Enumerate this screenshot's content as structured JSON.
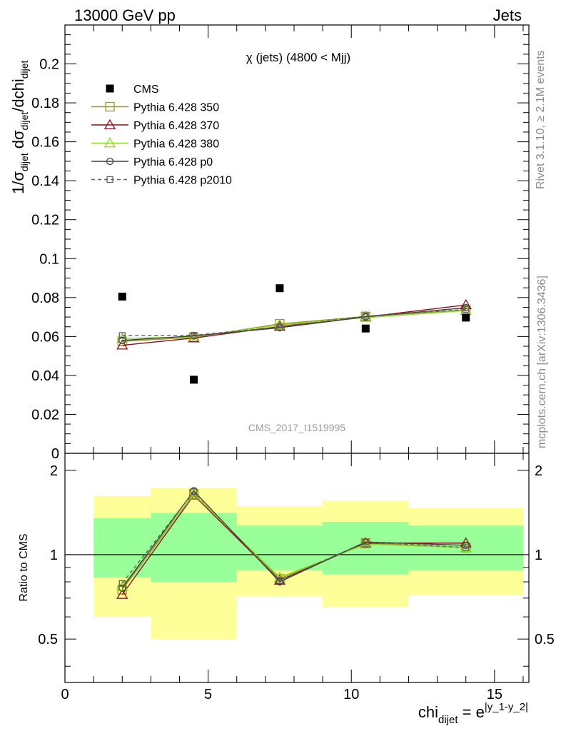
{
  "header": {
    "left": "13000 GeV pp",
    "right": "Jets"
  },
  "side_labels": {
    "rivet": "Rivet 3.1.10, ≥ 2.1M events",
    "mcplots": "mcplots.cern.ch [arXiv:1306.3436]"
  },
  "colors": {
    "cms": "#000000",
    "p350": "#9a9a1f",
    "p370": "#8b0f1e",
    "p380": "#8ed81e",
    "p0": "#404040",
    "p2010": "#606060",
    "band_inner": "#99ff99",
    "band_outer": "#ffff99"
  },
  "chart_data": [
    {
      "type": "scatter",
      "title": "χ (jets) (4800 < Mjj)",
      "analysis_label": "CMS_2017_I1519995",
      "ylabel": {
        "lead": "1/σ",
        "sub1": "dijet",
        "mid": " dσ",
        "sub2": "dijet",
        "tail": "/dchi",
        "sub3": "dijet"
      },
      "xlim": [
        0,
        16.2
      ],
      "ylim": [
        0,
        0.22
      ],
      "y_ticks": [
        "0",
        "0.02",
        "0.04",
        "0.06",
        "0.08",
        "0.1",
        "0.12",
        "0.14",
        "0.16",
        "0.18",
        "0.2"
      ],
      "x_ticks": [
        "0",
        "5",
        "10",
        "15"
      ],
      "x": [
        2,
        4.5,
        7.5,
        10.5,
        14
      ],
      "series": [
        {
          "name": "CMS",
          "marker": "square-filled",
          "values": [
            0.0805,
            0.0378,
            0.0848,
            0.0641,
            0.0697
          ]
        },
        {
          "name": "Pythia 6.428 350",
          "marker": "square-open",
          "values": [
            0.0575,
            0.0596,
            0.0665,
            0.0703,
            0.0737
          ]
        },
        {
          "name": "Pythia 6.428 370",
          "marker": "triangle-open",
          "values": [
            0.0555,
            0.0592,
            0.0652,
            0.07,
            0.0762
          ]
        },
        {
          "name": "Pythia 6.428 380",
          "marker": "triangle-open",
          "values": [
            0.059,
            0.0598,
            0.066,
            0.0697,
            0.0733
          ]
        },
        {
          "name": "Pythia 6.428 p0",
          "marker": "circle-open",
          "values": [
            0.058,
            0.0603,
            0.0645,
            0.0701,
            0.0748
          ]
        },
        {
          "name": "Pythia 6.428 p2010",
          "marker": "square-small-dashed",
          "values": [
            0.0605,
            0.0606,
            0.0649,
            0.0705,
            0.0739
          ]
        }
      ]
    },
    {
      "type": "scatter",
      "ylabel": "Ratio to CMS",
      "xlabel": {
        "base": "chi",
        "sub": "dijet",
        "eq": " = e",
        "sup": "|y_1-y_2|"
      },
      "xlim": [
        0,
        16.2
      ],
      "ylim": [
        0.35,
        2.3
      ],
      "y_ticks": [
        "0.5",
        "1",
        "2"
      ],
      "x_ticks": [
        "0",
        "5",
        "10",
        "15"
      ],
      "bins": [
        [
          1,
          3
        ],
        [
          3,
          6
        ],
        [
          6,
          9
        ],
        [
          9,
          12
        ],
        [
          12,
          16
        ]
      ],
      "band_inner": [
        [
          0.83,
          1.35
        ],
        [
          0.8,
          1.41
        ],
        [
          0.88,
          1.27
        ],
        [
          0.85,
          1.31
        ],
        [
          0.88,
          1.27
        ]
      ],
      "band_outer": [
        [
          0.6,
          1.62
        ],
        [
          0.5,
          1.73
        ],
        [
          0.71,
          1.49
        ],
        [
          0.65,
          1.56
        ],
        [
          0.72,
          1.47
        ]
      ],
      "x": [
        2,
        4.5,
        7.5,
        10.5,
        14
      ],
      "series": [
        {
          "name": "Pythia 6.428 350",
          "values": [
            0.75,
            1.65,
            0.82,
            1.1,
            1.06
          ]
        },
        {
          "name": "Pythia 6.428 370",
          "values": [
            0.72,
            1.63,
            0.81,
            1.1,
            1.1
          ]
        },
        {
          "name": "Pythia 6.428 380",
          "values": [
            0.77,
            1.64,
            0.83,
            1.09,
            1.06
          ]
        },
        {
          "name": "Pythia 6.428 p0",
          "values": [
            0.76,
            1.69,
            0.8,
            1.11,
            1.08
          ]
        },
        {
          "name": "Pythia 6.428 p2010",
          "values": [
            0.79,
            1.68,
            0.81,
            1.11,
            1.06
          ]
        }
      ]
    }
  ]
}
